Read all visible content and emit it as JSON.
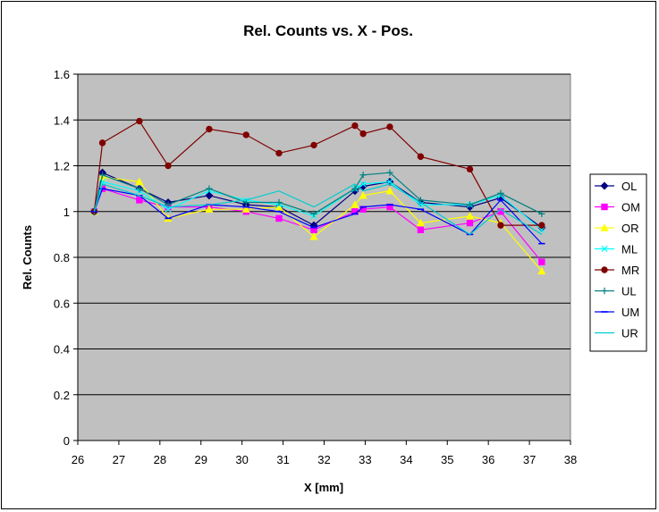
{
  "chart_data": {
    "type": "line",
    "title": "Rel. Counts vs. X - Pos.",
    "xlabel": "X [mm]",
    "ylabel": "Rel. Counts",
    "xlim": [
      26,
      38
    ],
    "ylim": [
      0,
      1.6
    ],
    "xticks": [
      26,
      27,
      28,
      29,
      30,
      31,
      32,
      33,
      34,
      35,
      36,
      37,
      38
    ],
    "yticks": [
      0,
      0.2,
      0.4,
      0.6,
      0.8,
      1,
      1.2,
      1.4,
      1.6
    ],
    "ytick_labels": [
      "0",
      "0.2",
      "0.4",
      "0.6",
      "0.8",
      "1",
      "1.2",
      "1.4",
      "1.6"
    ],
    "grid": "horizontal",
    "plot_background": "#C0C0C0",
    "legend_position": "right",
    "series": [
      {
        "name": "OL",
        "color": "#000080",
        "marker": "diamond",
        "x": [
          26.4,
          26.6,
          27.5,
          28.2,
          29.2,
          30.1,
          30.9,
          31.75,
          32.75,
          32.95,
          33.6,
          34.35,
          35.55,
          36.3,
          37.3
        ],
        "y": [
          1.0,
          1.17,
          1.1,
          1.04,
          1.07,
          1.03,
          1.02,
          0.94,
          1.09,
          1.11,
          1.13,
          1.04,
          1.02,
          1.06,
          0.93
        ]
      },
      {
        "name": "OM",
        "color": "#FF00FF",
        "marker": "square",
        "x": [
          26.4,
          26.6,
          27.5,
          28.2,
          29.2,
          30.1,
          30.9,
          31.75,
          32.75,
          32.95,
          33.6,
          34.35,
          35.55,
          36.3,
          37.3
        ],
        "y": [
          1.0,
          1.1,
          1.05,
          1.02,
          1.02,
          1.0,
          0.97,
          0.92,
          1.0,
          1.01,
          1.02,
          0.92,
          0.95,
          1.0,
          0.78
        ]
      },
      {
        "name": "OR",
        "color": "#FFFF00",
        "marker": "triangle",
        "x": [
          26.4,
          26.6,
          27.5,
          28.2,
          29.2,
          30.1,
          30.9,
          31.75,
          32.75,
          32.95,
          33.6,
          34.35,
          35.55,
          36.3,
          37.3
        ],
        "y": [
          1.0,
          1.15,
          1.13,
          0.97,
          1.01,
          1.01,
          1.02,
          0.89,
          1.03,
          1.07,
          1.09,
          0.95,
          0.98,
          0.95,
          0.74
        ]
      },
      {
        "name": "ML",
        "color": "#00FFFF",
        "marker": "x",
        "x": [
          26.4,
          26.6,
          27.5,
          28.2,
          29.2,
          30.1,
          30.9,
          31.75,
          32.75,
          32.95,
          33.6,
          34.35,
          35.55,
          36.3,
          37.3
        ],
        "y": [
          1.0,
          1.13,
          1.09,
          1.01,
          1.09,
          1.05,
          1.03,
          0.98,
          1.1,
          1.12,
          1.13,
          1.03,
          1.03,
          1.07,
          0.92
        ]
      },
      {
        "name": "MR",
        "color": "#800000",
        "marker": "circle",
        "x": [
          26.4,
          26.6,
          27.5,
          28.2,
          29.2,
          30.1,
          30.9,
          31.75,
          32.75,
          32.95,
          33.6,
          34.35,
          35.55,
          36.3,
          37.3
        ],
        "y": [
          1.0,
          1.3,
          1.395,
          1.2,
          1.36,
          1.335,
          1.255,
          1.29,
          1.375,
          1.34,
          1.37,
          1.24,
          1.185,
          0.94,
          0.94
        ]
      },
      {
        "name": "UL",
        "color": "#008080",
        "marker": "plus",
        "x": [
          26.4,
          26.6,
          27.5,
          28.2,
          29.2,
          30.1,
          30.9,
          31.75,
          32.75,
          32.95,
          33.6,
          34.35,
          35.55,
          36.3,
          37.3
        ],
        "y": [
          1.0,
          1.16,
          1.1,
          1.03,
          1.1,
          1.04,
          1.04,
          0.99,
          1.1,
          1.16,
          1.17,
          1.05,
          1.03,
          1.08,
          0.99
        ]
      },
      {
        "name": "UM",
        "color": "#0000FF",
        "marker": "dash",
        "x": [
          26.4,
          26.6,
          27.5,
          28.2,
          29.2,
          30.1,
          30.9,
          31.75,
          32.75,
          32.95,
          33.6,
          34.35,
          35.55,
          36.3,
          37.3
        ],
        "y": [
          1.0,
          1.1,
          1.07,
          0.97,
          1.03,
          1.02,
          1.0,
          0.93,
          0.99,
          1.02,
          1.03,
          1.01,
          0.9,
          1.05,
          0.86
        ]
      },
      {
        "name": "UR",
        "color": "#00CCCC",
        "marker": "none",
        "x": [
          26.4,
          26.6,
          27.5,
          28.2,
          29.2,
          30.1,
          30.9,
          31.75,
          32.75,
          32.95,
          33.6,
          34.35,
          35.55,
          36.3,
          37.3
        ],
        "y": [
          1.0,
          1.12,
          1.07,
          1.02,
          1.03,
          1.05,
          1.09,
          1.02,
          1.12,
          1.09,
          1.12,
          1.04,
          0.9,
          1.01,
          0.9
        ]
      }
    ]
  }
}
